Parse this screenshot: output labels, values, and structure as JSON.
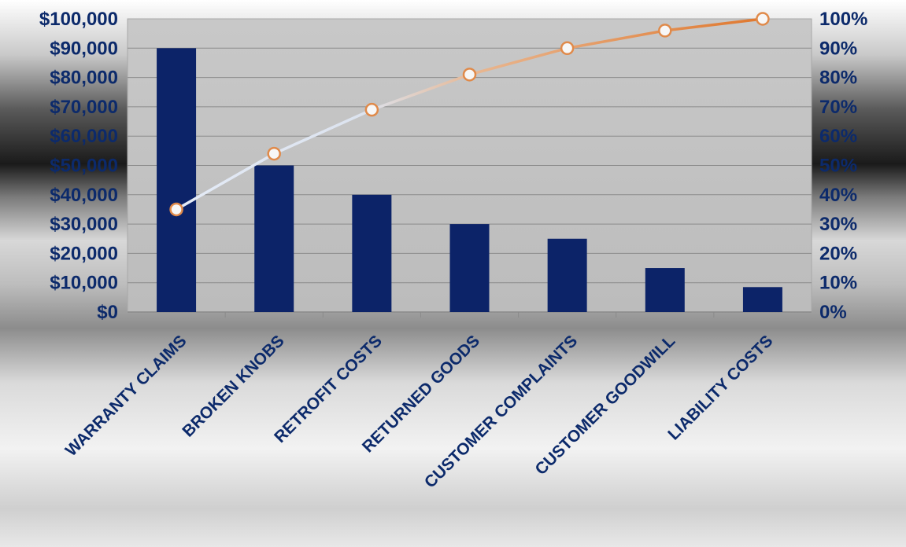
{
  "chart_data": {
    "type": "bar",
    "title": "",
    "xlabel": "",
    "ylabel": "",
    "categories": [
      "WARRANTY CLAIMS",
      "BROKEN KNOBS",
      "RETROFIT COSTS",
      "RETURNED GOODS",
      "CUSTOMER COMPLAINTS",
      "CUSTOMER GOODWILL",
      "LIABILITY COSTS"
    ],
    "series": [
      {
        "type": "bar",
        "axis": "left",
        "values": [
          90000,
          50000,
          40000,
          30000,
          25000,
          15000,
          8500
        ]
      },
      {
        "type": "line",
        "axis": "right",
        "values": [
          35,
          54,
          69,
          81,
          90,
          96,
          100
        ]
      }
    ],
    "ylim": [
      0,
      100000
    ],
    "y2lim": [
      0,
      100
    ],
    "yticks": [
      "$0",
      "$10,000",
      "$20,000",
      "$30,000",
      "$40,000",
      "$50,000",
      "$60,000",
      "$70,000",
      "$80,000",
      "$90,000",
      "$100,000"
    ],
    "y2ticks": [
      "0%",
      "10%",
      "20%",
      "30%",
      "40%",
      "50%",
      "60%",
      "70%",
      "80%",
      "90%",
      "100%"
    ],
    "grid": true,
    "legend": "none",
    "colors": {
      "bar": "#0c2368",
      "line_start": "#dde6f5",
      "line_end": "#e0782e",
      "marker_stroke": "#e08a4a",
      "text": "#0c2a6b"
    }
  }
}
